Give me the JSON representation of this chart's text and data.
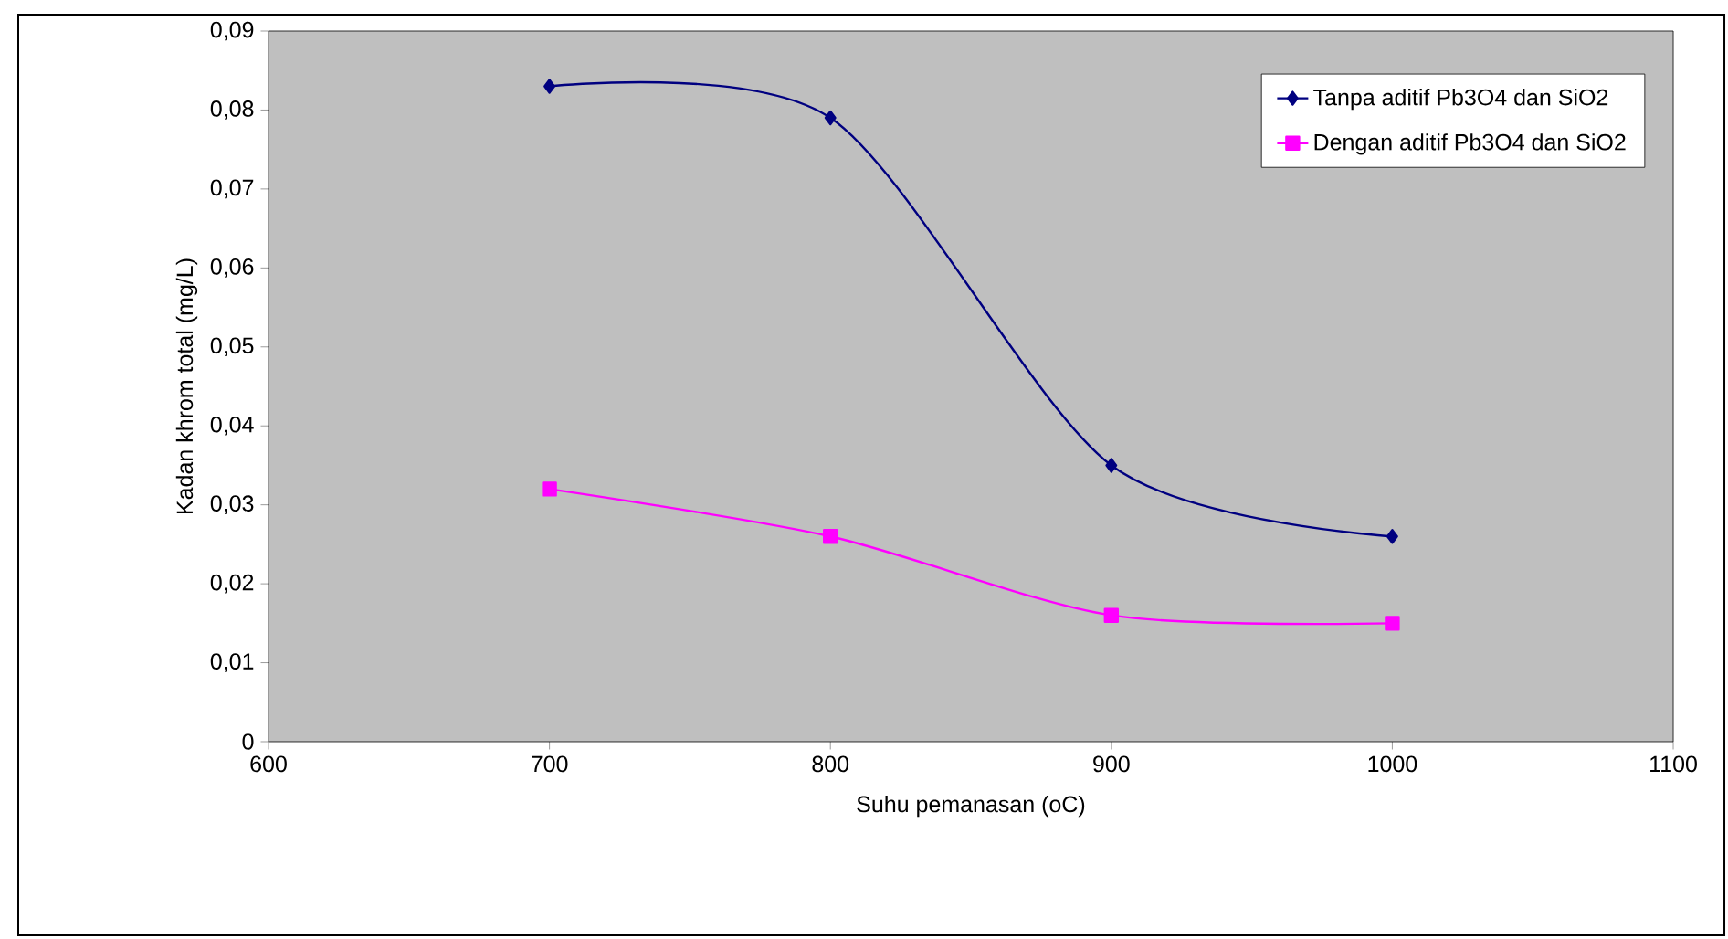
{
  "chart_data": {
    "type": "line",
    "xlabel": "Suhu pemanasan (oC)",
    "ylabel": "Kadan khrom total (mg/L)",
    "xlim": [
      600,
      1100
    ],
    "xticks": [
      600,
      700,
      800,
      900,
      1000,
      1100
    ],
    "ylim": [
      0,
      0.09
    ],
    "yticks": [
      0,
      {
        "value": 0.01,
        "label": "0,01"
      },
      {
        "value": 0.02,
        "label": "0,02"
      },
      {
        "value": 0.03,
        "label": "0,03"
      },
      {
        "value": 0.04,
        "label": "0,04"
      },
      {
        "value": 0.05,
        "label": "0,05"
      },
      {
        "value": 0.06,
        "label": "0,06"
      },
      {
        "value": 0.07,
        "label": "0,07"
      },
      {
        "value": 0.08,
        "label": "0,08"
      },
      {
        "value": 0.09,
        "label": "0,09"
      }
    ],
    "x": [
      700,
      800,
      900,
      1000
    ],
    "series": [
      {
        "name": "Tanpa aditif Pb3O4 dan SiO2",
        "color": "#000080",
        "marker": "diamond",
        "values": [
          0.083,
          0.079,
          0.035,
          0.026
        ]
      },
      {
        "name": "Dengan aditif Pb3O4 dan SiO2",
        "color": "#ff00ff",
        "marker": "square",
        "values": [
          0.032,
          0.026,
          0.016,
          0.015
        ]
      }
    ],
    "line_style": "solid",
    "grid": false,
    "legend": "top right"
  }
}
